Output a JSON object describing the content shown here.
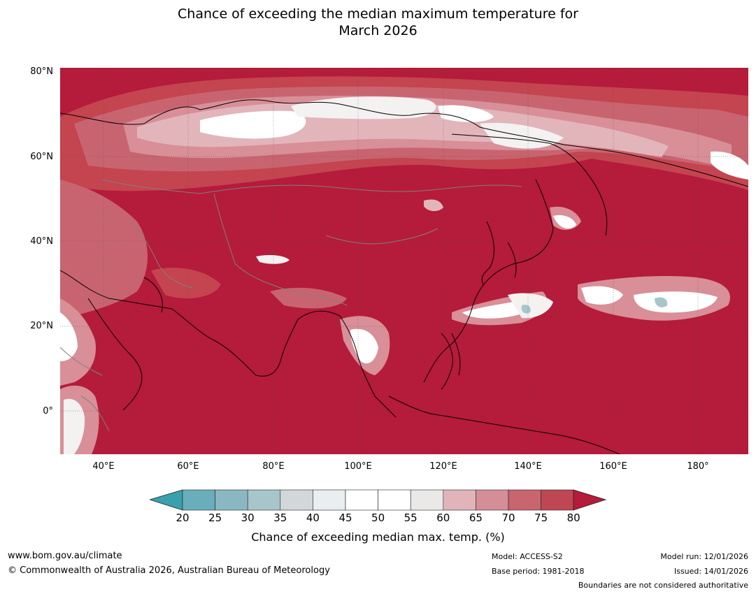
{
  "title": {
    "line1": "Chance of exceeding the median maximum temperature for",
    "line2": "March 2026"
  },
  "map": {
    "lat_labels": [
      "80°N",
      "60°N",
      "40°N",
      "20°N",
      "0°"
    ],
    "lon_labels": [
      "40°E",
      "60°E",
      "80°E",
      "100°E",
      "120°E",
      "140°E",
      "160°E",
      "180°"
    ],
    "colors": {
      "ocean_high": "#b51b3a",
      "band_75": "#c4444f",
      "band_70": "#c86470",
      "band_65": "#d88f98",
      "band_60": "#e2b5bb",
      "near_white": "#f4f1f1",
      "white": "#ffffff",
      "coast": "#000000",
      "border": "#808080"
    }
  },
  "legend": {
    "ticks": [
      "20",
      "25",
      "30",
      "35",
      "40",
      "45",
      "50",
      "55",
      "60",
      "65",
      "70",
      "75",
      "80"
    ],
    "bins": [
      {
        "color": "#6aaebb"
      },
      {
        "color": "#89b8c2"
      },
      {
        "color": "#a6c6cb"
      },
      {
        "color": "#d2d7da"
      },
      {
        "color": "#e9eef0"
      },
      {
        "color": "#ffffff"
      },
      {
        "color": "#ffffff"
      },
      {
        "color": "#ebe9e8"
      },
      {
        "color": "#e0b4ba"
      },
      {
        "color": "#d38e97"
      },
      {
        "color": "#c8656f"
      },
      {
        "color": "#bf4653"
      }
    ],
    "low_arrow_color": "#3aa0ad",
    "high_arrow_color": "#b51b3a",
    "title": "Chance of exceeding median max. temp. (%)"
  },
  "footer": {
    "website": "www.bom.gov.au/climate",
    "copyright": "© Commonwealth of Australia 2026, Australian Bureau of Meteorology",
    "model": "Model: ACCESS-S2",
    "base_period": "Base period: 1981-2018",
    "model_run": "Model run: 12/01/2026",
    "issued": "Issued: 14/01/2026",
    "disclaimer": "Boundaries are not considered authoritative"
  }
}
